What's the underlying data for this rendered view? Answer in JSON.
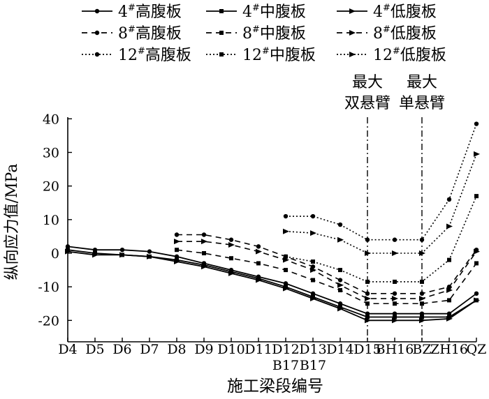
{
  "chart_data": {
    "type": "line",
    "title": "",
    "xlabel": "施工梁段编号",
    "ylabel": "纵向应力值/MPa",
    "ylim": [
      -25,
      40
    ],
    "yticks": [
      40,
      30,
      20,
      10,
      0,
      -10,
      -20
    ],
    "categories": [
      "D4",
      "D5",
      "D6",
      "D7",
      "D8",
      "D9",
      "D10",
      "D11",
      "D12",
      "D13",
      "D14",
      "D15",
      "BH16",
      "BZ",
      "ZH16",
      "QZ"
    ],
    "category_sublabels": [
      {
        "index": 8,
        "text": "B17"
      },
      {
        "index": 9,
        "text": "B17"
      }
    ],
    "annotations": [
      {
        "category": "D15",
        "lines": [
          "最大",
          "双悬臂"
        ]
      },
      {
        "category": "BZ",
        "lines": [
          "最大",
          "单悬臂"
        ]
      }
    ],
    "legend": {
      "columns": 3,
      "placement": "top"
    },
    "series": [
      {
        "name": "4#高腹板",
        "prefix": "4",
        "sup": "#",
        "suffix": "高腹板",
        "dash": "solid",
        "marker": "circle",
        "values": [
          2,
          1,
          1,
          0.5,
          -1,
          -3,
          -5,
          -7,
          -9,
          -12,
          -15,
          -18,
          -18,
          -18,
          -18,
          -12
        ]
      },
      {
        "name": "4#中腹板",
        "prefix": "4",
        "sup": "#",
        "suffix": "中腹板",
        "dash": "solid",
        "marker": "square",
        "values": [
          1,
          0,
          -0.5,
          -1,
          -2,
          -3.5,
          -5.5,
          -7.5,
          -10,
          -13,
          -16,
          -19,
          -19,
          -19,
          -19,
          -14
        ]
      },
      {
        "name": "4#低腹板",
        "prefix": "4",
        "sup": "#",
        "suffix": "低腹板",
        "dash": "solid",
        "marker": "triangle",
        "values": [
          0.5,
          -0.5,
          -0.5,
          -1,
          -2.5,
          -4,
          -6,
          -8,
          -10.5,
          -13.5,
          -16.5,
          -20,
          -20,
          -20,
          -19.5,
          -14
        ]
      },
      {
        "name": "8#高腹板",
        "prefix": "8",
        "sup": "#",
        "suffix": "高腹板",
        "dash": "dashed",
        "marker": "circle",
        "values": [
          null,
          null,
          null,
          null,
          5.5,
          5.5,
          4,
          2,
          -1,
          -4,
          -8,
          -12,
          -12,
          -12,
          -10,
          1
        ]
      },
      {
        "name": "8#中腹板",
        "prefix": "8",
        "sup": "#",
        "suffix": "中腹板",
        "dash": "dashed",
        "marker": "square",
        "values": [
          null,
          null,
          null,
          null,
          1,
          0,
          -1.5,
          -3,
          -5,
          -8,
          -11,
          -15,
          -15,
          -15,
          -14,
          -3
        ]
      },
      {
        "name": "8#低腹板",
        "prefix": "8",
        "sup": "#",
        "suffix": "低腹板",
        "dash": "dashed",
        "marker": "triangle",
        "values": [
          null,
          null,
          null,
          null,
          3.5,
          3.5,
          2.5,
          0.5,
          -2,
          -5,
          -9.5,
          -13.5,
          -13.5,
          -13.5,
          -11,
          0.5
        ]
      },
      {
        "name": "12#高腹板",
        "prefix": "12",
        "sup": "#",
        "suffix": "高腹板",
        "dash": "dotted",
        "marker": "circle",
        "values": [
          null,
          null,
          null,
          null,
          null,
          null,
          null,
          null,
          11,
          11,
          8.5,
          4,
          4,
          4,
          16,
          38.5
        ]
      },
      {
        "name": "12#中腹板",
        "prefix": "12",
        "sup": "#",
        "suffix": "中腹板",
        "dash": "dotted",
        "marker": "square",
        "values": [
          null,
          null,
          null,
          null,
          null,
          null,
          null,
          null,
          -1,
          -2.5,
          -5,
          -8.5,
          -8.5,
          -8.5,
          -2,
          17
        ]
      },
      {
        "name": "12#低腹板",
        "prefix": "12",
        "sup": "#",
        "suffix": "低腹板",
        "dash": "dotted",
        "marker": "triangle",
        "values": [
          null,
          null,
          null,
          null,
          null,
          null,
          null,
          null,
          6.5,
          6,
          4,
          0,
          0,
          0,
          8,
          29.5
        ]
      }
    ]
  }
}
